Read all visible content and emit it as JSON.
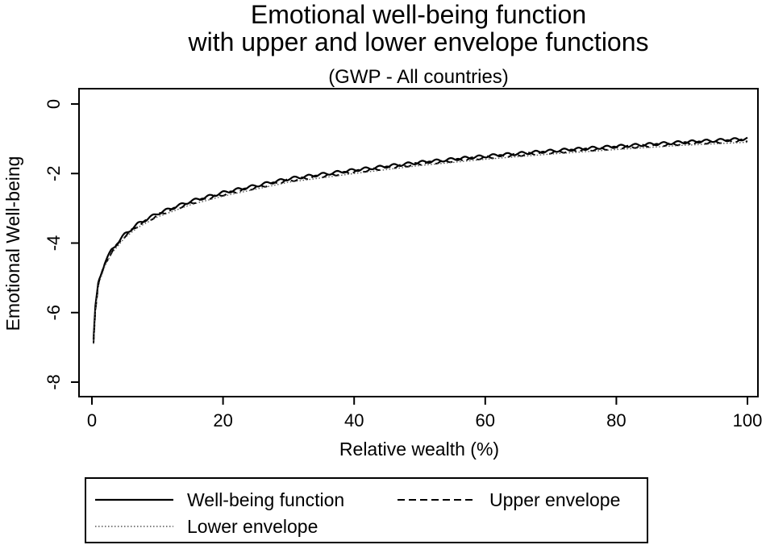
{
  "chart_data": {
    "type": "line",
    "title": "Emotional well-being function",
    "title_line2": "with upper and lower envelope functions",
    "subtitle": "(GWP - All countries)",
    "xlabel": "Relative wealth (%)",
    "ylabel": "Emotional Well-being",
    "xlim": [
      0,
      100
    ],
    "ylim": [
      -8,
      0
    ],
    "xticks": [
      "0",
      "20",
      "40",
      "60",
      "80",
      "100"
    ],
    "yticks": [
      "0",
      "-2",
      "-4",
      "-6",
      "-8"
    ],
    "grid": false,
    "legend_position": "bottom",
    "series": [
      {
        "name": "Well-being function",
        "style": "solid",
        "x": [
          0.25,
          0.5,
          1,
          2,
          3,
          5,
          7,
          10,
          15,
          20,
          25,
          30,
          40,
          50,
          60,
          70,
          80,
          90,
          100
        ],
        "y": [
          -6.8,
          -5.9,
          -5.1,
          -4.55,
          -4.2,
          -3.75,
          -3.45,
          -3.15,
          -2.8,
          -2.55,
          -2.35,
          -2.15,
          -1.9,
          -1.68,
          -1.5,
          -1.35,
          -1.22,
          -1.1,
          -1.0
        ]
      },
      {
        "name": "Upper envelope",
        "style": "dashed",
        "x": [
          0.25,
          0.5,
          1,
          2,
          3,
          5,
          7,
          10,
          15,
          20,
          25,
          30,
          40,
          50,
          60,
          70,
          80,
          90,
          100
        ],
        "y": [
          -6.85,
          -5.95,
          -5.15,
          -4.6,
          -4.25,
          -3.8,
          -3.5,
          -3.2,
          -2.85,
          -2.6,
          -2.4,
          -2.2,
          -1.95,
          -1.72,
          -1.54,
          -1.39,
          -1.26,
          -1.14,
          -1.05
        ]
      },
      {
        "name": "Lower envelope",
        "style": "dotted",
        "x": [
          0.25,
          0.5,
          1,
          2,
          3,
          5,
          7,
          10,
          15,
          20,
          25,
          30,
          40,
          50,
          60,
          70,
          80,
          90,
          100
        ],
        "y": [
          -6.9,
          -6.0,
          -5.2,
          -4.65,
          -4.3,
          -3.85,
          -3.55,
          -3.25,
          -2.9,
          -2.65,
          -2.45,
          -2.25,
          -2.0,
          -1.77,
          -1.59,
          -1.44,
          -1.31,
          -1.19,
          -1.1
        ]
      }
    ]
  }
}
